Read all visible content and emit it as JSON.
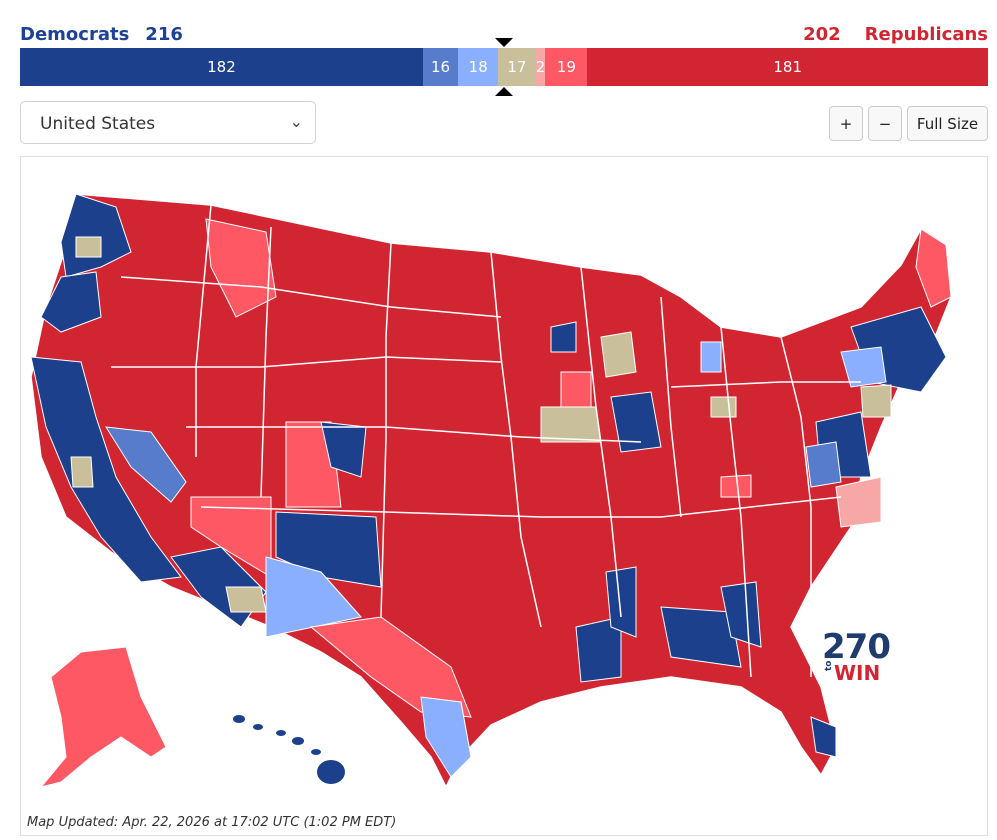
{
  "header": {
    "dem_label": "Democrats",
    "dem_total": "216",
    "rep_total": "202",
    "rep_label": "Republicans"
  },
  "colors": {
    "safe_dem": "#1c408c",
    "likely_dem": "#577ccc",
    "lean_dem": "#8aafff",
    "tossup": "#c9c09b",
    "tilt_rep": "#f8a7a7",
    "lean_rep": "#ff5865",
    "safe_rep": "#d22532"
  },
  "seats_bar": {
    "segments": [
      {
        "label": "182",
        "value": 182,
        "color": "#1c408c"
      },
      {
        "label": "16",
        "value": 16,
        "color": "#577ccc"
      },
      {
        "label": "18",
        "value": 18,
        "color": "#8aafff"
      },
      {
        "label": "17",
        "value": 17,
        "color": "#c9c09b"
      },
      {
        "label": "2",
        "value": 2,
        "color": "#f8a7a7"
      },
      {
        "label": "19",
        "value": 19,
        "color": "#ff5865"
      },
      {
        "label": "181",
        "value": 181,
        "color": "#d22532"
      }
    ]
  },
  "controls": {
    "region_select": "United States",
    "zoom_in": "+",
    "zoom_out": "−",
    "full_size": "Full Size"
  },
  "map": {
    "logo_number": "270",
    "logo_to": "to",
    "logo_win": "WIN"
  },
  "footer": {
    "updated_text": "Map Updated: Apr. 22, 2026 at 17:02 UTC (1:02 PM EDT)"
  }
}
